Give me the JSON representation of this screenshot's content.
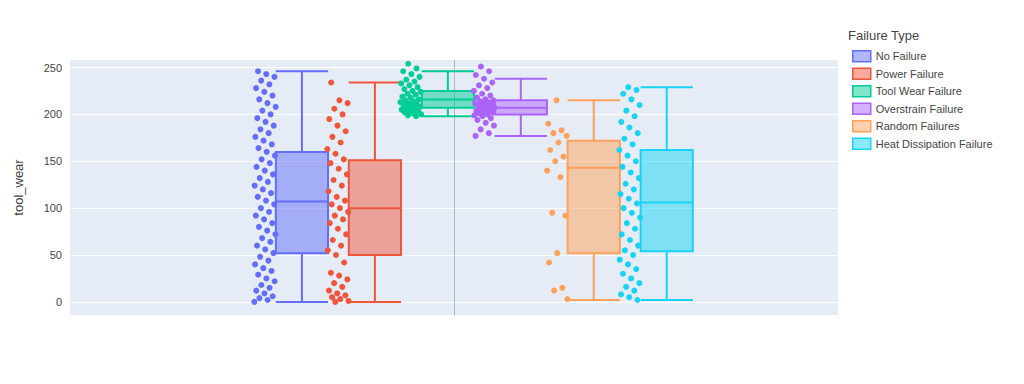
{
  "chart_data": {
    "type": "box",
    "y_label": "tool_wear",
    "legend_title": "Failure Type",
    "ylim": [
      -14,
      258
    ],
    "yticks": [
      0,
      50,
      100,
      150,
      200,
      250
    ],
    "grid": true,
    "legend": "right",
    "tick_labels": "y",
    "series": [
      {
        "name": "No Failure",
        "color": "#636efa",
        "box": {
          "min": 0,
          "q1": 52,
          "median": 107,
          "q3": 160,
          "max": 246
        },
        "points": [
          0,
          2,
          4,
          6,
          9,
          12,
          15,
          18,
          22,
          25,
          29,
          33,
          36,
          40,
          44,
          48,
          52,
          56,
          60,
          64,
          68,
          72,
          76,
          80,
          84,
          88,
          92,
          96,
          100,
          104,
          108,
          112,
          116,
          120,
          124,
          128,
          132,
          136,
          140,
          144,
          148,
          152,
          156,
          160,
          164,
          168,
          172,
          176,
          180,
          184,
          188,
          192,
          196,
          200,
          204,
          208,
          212,
          216,
          220,
          224,
          228,
          232,
          236,
          240,
          243,
          246
        ]
      },
      {
        "name": "Power Failure",
        "color": "#EF553B",
        "box": {
          "min": 0,
          "q1": 50,
          "median": 100,
          "q3": 151,
          "max": 234
        },
        "points": [
          0,
          1,
          3,
          5,
          7,
          9,
          12,
          16,
          20,
          24,
          28,
          31,
          42,
          50,
          55,
          60,
          66,
          72,
          78,
          84,
          88,
          92,
          96,
          100,
          104,
          108,
          112,
          118,
          124,
          130,
          136,
          142,
          148,
          152,
          158,
          163,
          170,
          176,
          182,
          188,
          195,
          200,
          206,
          212,
          215,
          234
        ]
      },
      {
        "name": "Tool Wear Failure",
        "color": "#00cc96",
        "box": {
          "min": 198,
          "q1": 207,
          "median": 216,
          "q3": 225,
          "max": 246
        },
        "points": [
          198,
          199,
          200,
          201,
          202,
          203,
          204,
          205,
          206,
          207,
          208,
          209,
          210,
          211,
          212,
          213,
          214,
          215,
          216,
          218,
          219,
          221,
          222,
          224,
          225,
          227,
          229,
          231,
          233,
          235,
          237,
          240,
          243,
          246,
          249,
          254
        ]
      },
      {
        "name": "Overstrain Failure",
        "color": "#ab63fa",
        "box": {
          "min": 177,
          "q1": 200,
          "median": 207,
          "q3": 215,
          "max": 238
        },
        "points": [
          177,
          180,
          184,
          188,
          191,
          194,
          196,
          198,
          199,
          200,
          201,
          202,
          203,
          204,
          205,
          206,
          207,
          208,
          209,
          210,
          211,
          212,
          213,
          214,
          215,
          216,
          218,
          220,
          222,
          225,
          228,
          231,
          234,
          238,
          242,
          246,
          251
        ]
      },
      {
        "name": "Random Failures",
        "color": "#FFA15A",
        "box": {
          "min": 2,
          "q1": 52,
          "median": 143,
          "q3": 172,
          "max": 215
        },
        "points": [
          215,
          190,
          183,
          180,
          177,
          170,
          162,
          155,
          150,
          140,
          133,
          95,
          92,
          52,
          42,
          15,
          12,
          3
        ]
      },
      {
        "name": "Heat Dissipation Failure",
        "color": "#19d3f3",
        "box": {
          "min": 2,
          "q1": 54,
          "median": 106,
          "q3": 162,
          "max": 229
        },
        "points": [
          2,
          5,
          8,
          12,
          16,
          20,
          25,
          30,
          35,
          40,
          45,
          50,
          55,
          60,
          66,
          72,
          78,
          84,
          90,
          95,
          100,
          105,
          110,
          115,
          120,
          126,
          132,
          138,
          144,
          150,
          156,
          162,
          168,
          174,
          180,
          186,
          192,
          198,
          204,
          210,
          216,
          222,
          226,
          229
        ]
      }
    ]
  }
}
